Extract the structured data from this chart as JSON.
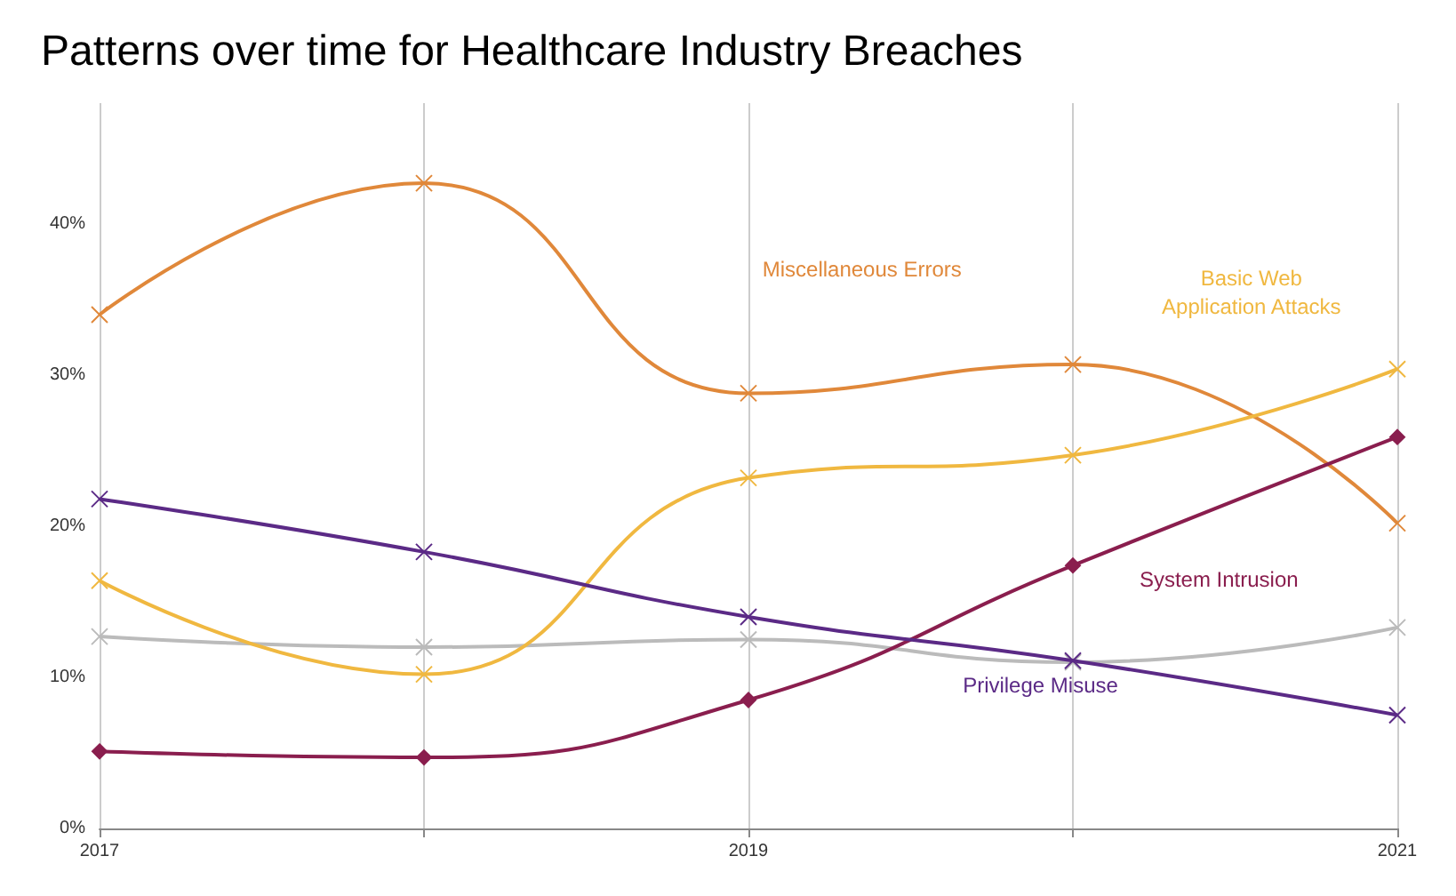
{
  "chart_data": {
    "type": "line",
    "title": "Patterns over time for Healthcare Industry Breaches",
    "x": [
      2017,
      2018,
      2019,
      2020,
      2021
    ],
    "series": [
      {
        "name": "Miscellaneous Errors",
        "color": "#e0883a",
        "values": [
          34,
          42.7,
          28.8,
          30.7,
          20.2
        ],
        "marker": "cross"
      },
      {
        "name": "Basic Web Application Attacks",
        "color": "#f0b840",
        "values": [
          16.4,
          10.2,
          23.2,
          24.7,
          30.4
        ],
        "marker": "cross"
      },
      {
        "name": "System Intrusion",
        "color": "#8a1e4e",
        "values": [
          5.1,
          4.7,
          8.5,
          17.4,
          25.9
        ],
        "marker": "diamond"
      },
      {
        "name": "Privilege Misuse",
        "color": "#5b2a86",
        "values": [
          21.8,
          18.3,
          14,
          11.1,
          7.5
        ],
        "marker": "cross"
      },
      {
        "color": "#bbbbbb",
        "values": [
          12.7,
          12,
          12.5,
          11,
          13.3
        ],
        "marker": "cross"
      }
    ],
    "xlim": [
      2017,
      2021
    ],
    "xticks": [
      2017,
      {
        "value": 2018,
        "label": null
      },
      2019,
      {
        "value": 2020,
        "label": null
      },
      2021
    ],
    "ylim": [
      0,
      48
    ],
    "yticks": [
      {
        "value": 0,
        "label": "0%"
      },
      {
        "value": 10,
        "label": "10%"
      },
      {
        "value": 20,
        "label": "20%"
      },
      {
        "value": 30,
        "label": "30%"
      },
      {
        "value": 40,
        "label": "40%"
      }
    ],
    "grid": "x",
    "legend": false
  }
}
